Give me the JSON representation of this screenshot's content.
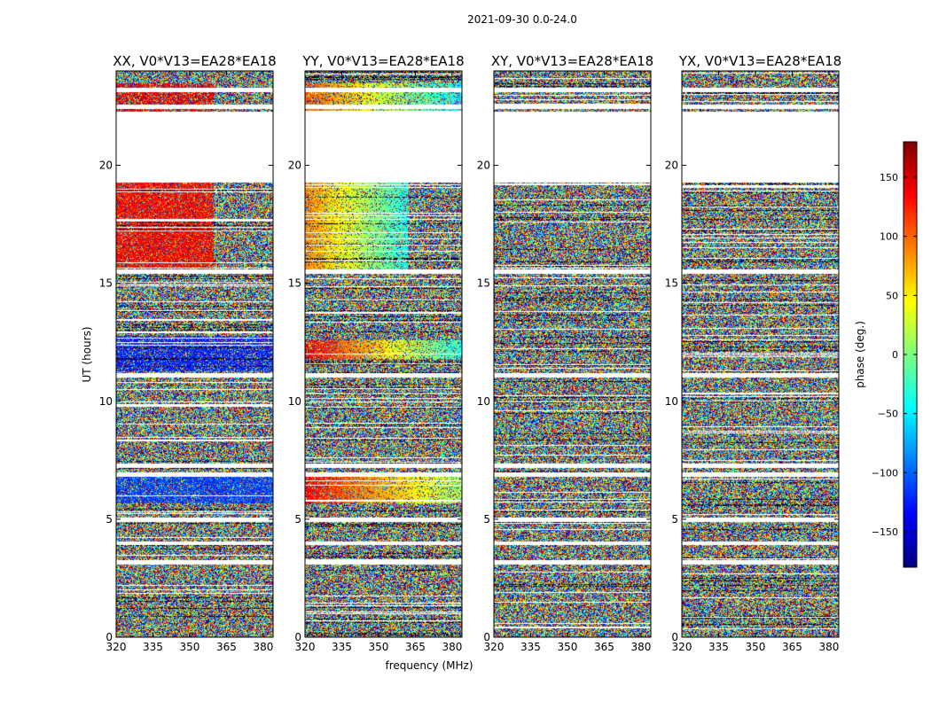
{
  "figure": {
    "suptitle": "2021-09-30 0.0-24.0",
    "xlabel": "frequency (MHz)",
    "ylabel": "UT (hours)"
  },
  "colorbar": {
    "label": "phase (deg.)",
    "range": [
      -180,
      180
    ],
    "ticks": [
      150,
      100,
      50,
      0,
      -50,
      -100,
      -150
    ],
    "tick_labels": [
      "150",
      "100",
      "50",
      "0",
      "−50",
      "−100",
      "−150"
    ],
    "colormap": "jet",
    "colors": [
      "#00007f",
      "#0000ff",
      "#007fff",
      "#00ffff",
      "#7fff7f",
      "#ffff00",
      "#ff7f00",
      "#ff0000",
      "#7f0000"
    ]
  },
  "chart_data": {
    "type": "heatmap",
    "title": "2021-09-30 0.0-24.0",
    "xlabel": "frequency (MHz)",
    "ylabel": "UT (hours)",
    "xlim": [
      320,
      384
    ],
    "ylim": [
      0,
      24
    ],
    "xticks": [
      320,
      335,
      350,
      365,
      380
    ],
    "xtick_labels": [
      "320",
      "335",
      "350",
      "365",
      "380"
    ],
    "yticks": [
      0,
      5,
      10,
      15,
      20
    ],
    "ytick_labels": [
      "0",
      "5",
      "10",
      "15",
      "20"
    ],
    "value_label": "phase (deg.)",
    "value_range": [
      -180,
      180
    ],
    "panels": [
      {
        "title": "XX, V0*V13=EA28*EA18",
        "polarization": "XX"
      },
      {
        "title": "YY, V0*V13=EA28*EA18",
        "polarization": "YY"
      },
      {
        "title": "XY, V0*V13=EA28*EA18",
        "polarization": "XY"
      },
      {
        "title": "YX, V0*V13=EA28*EA18",
        "polarization": "YX"
      }
    ],
    "missing_data_bands_hours": [
      [
        19.3,
        22.3
      ]
    ],
    "flagged_rows_hours": [
      3.2,
      4.0,
      5.0,
      6.9,
      7.3,
      11.1,
      15.5,
      22.5,
      23.2
    ]
  }
}
